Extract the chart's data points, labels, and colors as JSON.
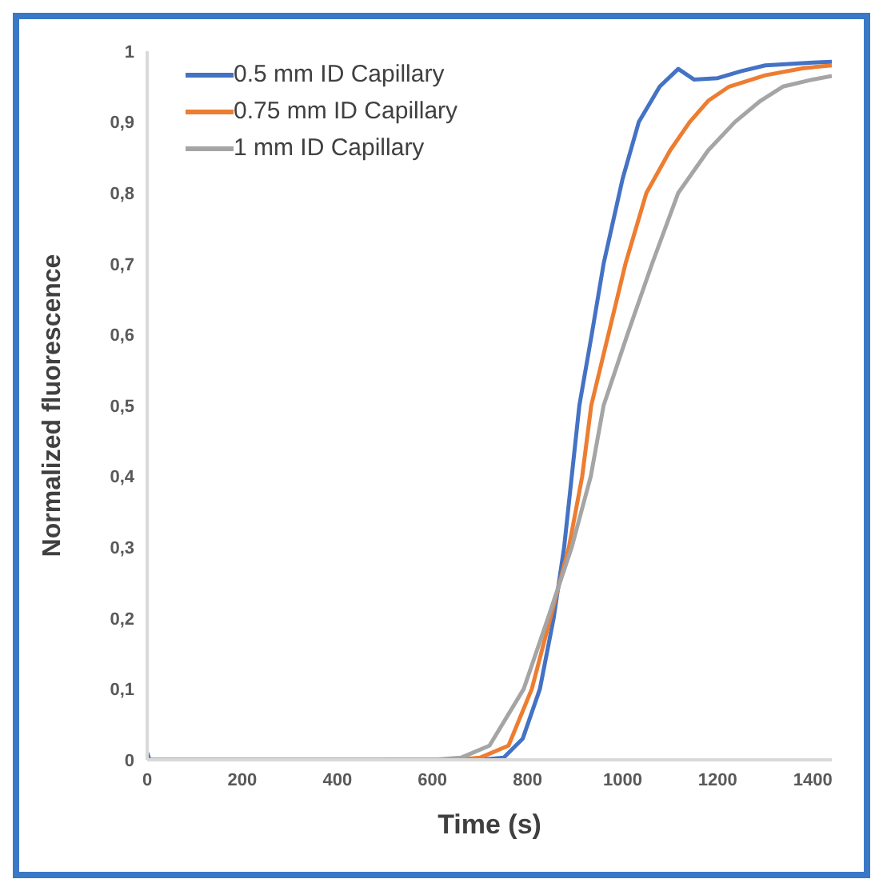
{
  "chart_data": {
    "type": "line",
    "xlabel": "Time (s)",
    "ylabel": "Normalized fluorescence",
    "xlim": [
      0,
      1440
    ],
    "xticks": [
      0,
      200,
      400,
      600,
      800,
      1000,
      1200,
      1400
    ],
    "ylim": [
      0,
      1
    ],
    "yticks": [
      {
        "value": 0,
        "label": "0"
      },
      {
        "value": 0.1,
        "label": "0,1"
      },
      {
        "value": 0.2,
        "label": "0,2"
      },
      {
        "value": 0.3,
        "label": "0,3"
      },
      {
        "value": 0.4,
        "label": "0,4"
      },
      {
        "value": 0.5,
        "label": "0,5"
      },
      {
        "value": 0.6,
        "label": "0,6"
      },
      {
        "value": 0.7,
        "label": "0,7"
      },
      {
        "value": 0.8,
        "label": "0,8"
      },
      {
        "value": 0.9,
        "label": "0,9"
      },
      {
        "value": 1,
        "label": "1"
      }
    ],
    "grid": false,
    "legend": "top left",
    "marker": "none",
    "line_style": "solid",
    "series": [
      {
        "name": "0.5 mm ID Capillary",
        "color": "#4472c4",
        "x": [
          0,
          5,
          100,
          300,
          500,
          700,
          750,
          790,
          826,
          855,
          877,
          893,
          909,
          935,
          960,
          1000,
          1034,
          1078,
          1117,
          1150,
          1200,
          1250,
          1300,
          1350,
          1400,
          1440
        ],
        "values": [
          0.01,
          0,
          0,
          0,
          0,
          0,
          0.003,
          0.03,
          0.1,
          0.2,
          0.3,
          0.4,
          0.5,
          0.6,
          0.7,
          0.82,
          0.9,
          0.95,
          0.975,
          0.96,
          0.962,
          0.972,
          0.98,
          0.982,
          0.984,
          0.985
        ]
      },
      {
        "name": "0.75 mm ID Capillary",
        "color": "#ed7d31",
        "x": [
          500,
          650,
          700,
          760,
          809,
          848,
          887,
          915,
          934,
          970,
          1006,
          1050,
          1100,
          1141,
          1180,
          1224,
          1300,
          1380,
          1440
        ],
        "values": [
          0,
          0,
          0.003,
          0.02,
          0.1,
          0.2,
          0.3,
          0.4,
          0.5,
          0.6,
          0.7,
          0.8,
          0.86,
          0.9,
          0.93,
          0.95,
          0.966,
          0.976,
          0.98
        ]
      },
      {
        "name": "1 mm ID Capillary",
        "color": "#a5a5a5",
        "x": [
          0,
          100,
          300,
          500,
          600,
          660,
          720,
          792,
          843,
          893,
          933,
          960,
          1010,
          1062,
          1117,
          1180,
          1236,
          1290,
          1337,
          1400,
          1440
        ],
        "values": [
          0,
          0,
          0,
          0,
          0,
          0.003,
          0.02,
          0.1,
          0.2,
          0.3,
          0.4,
          0.5,
          0.6,
          0.7,
          0.8,
          0.86,
          0.9,
          0.93,
          0.95,
          0.96,
          0.965
        ]
      }
    ]
  }
}
